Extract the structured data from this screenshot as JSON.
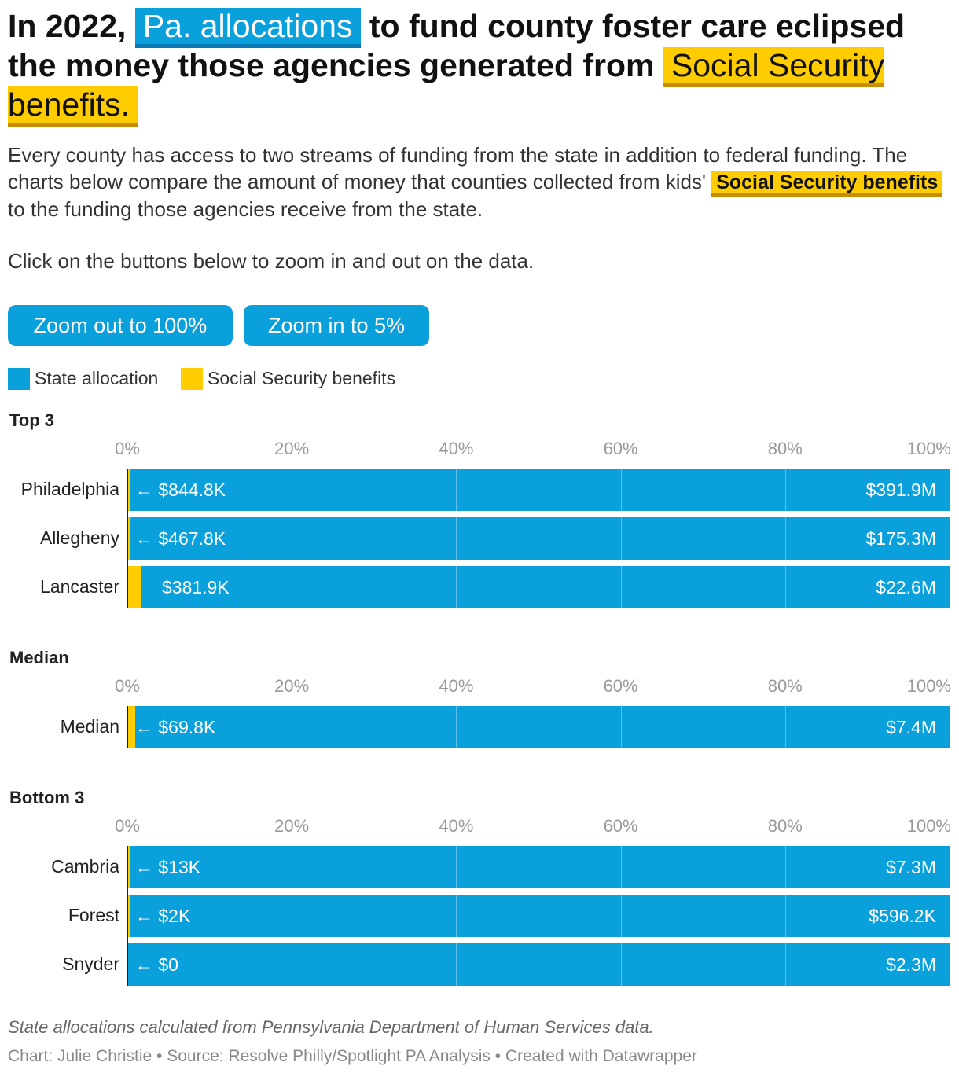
{
  "headline": {
    "part1": "In 2022, ",
    "highlight1": "Pa. allocations",
    "part2": " to fund county foster care eclipsed the money those agencies generated from ",
    "highlight2": "Social Security benefits."
  },
  "intro": {
    "part1": "Every county has access to two streams of funding from the state in addition to federal funding. The charts below compare the amount of money that counties collected from kids' ",
    "highlight": "Social Security benefits",
    "part2": " to the funding those agencies receive from the state."
  },
  "instructions": "Click on the buttons below to zoom in and out on the data.",
  "buttons": {
    "zoom_out": "Zoom out to 100%",
    "zoom_in": "Zoom in to 5%"
  },
  "legend": {
    "state": "State allocation",
    "ss": "Social Security benefits"
  },
  "colors": {
    "state": "#0aa0dc",
    "ss": "#ffcc00"
  },
  "chart_data": [
    {
      "type": "bar",
      "title": "Top 3",
      "xlim": [
        0,
        100
      ],
      "ticks": [
        "0%",
        "20%",
        "40%",
        "60%",
        "80%",
        "100%"
      ],
      "categories": [
        "Philadelphia",
        "Allegheny",
        "Lancaster"
      ],
      "series": [
        {
          "name": "Social Security benefits",
          "values": [
            0.22,
            0.27,
            1.69
          ],
          "labels": [
            "← $844.8K",
            "← $467.8K",
            "$381.9K"
          ]
        },
        {
          "name": "State allocation",
          "values": [
            100,
            100,
            100
          ],
          "labels": [
            "$391.9M",
            "$175.3M",
            "$22.6M"
          ]
        }
      ]
    },
    {
      "type": "bar",
      "title": "Median",
      "xlim": [
        0,
        100
      ],
      "ticks": [
        "0%",
        "20%",
        "40%",
        "60%",
        "80%",
        "100%"
      ],
      "categories": [
        "Median"
      ],
      "series": [
        {
          "name": "Social Security benefits",
          "values": [
            0.94
          ],
          "labels": [
            "← $69.8K"
          ]
        },
        {
          "name": "State allocation",
          "values": [
            100
          ],
          "labels": [
            "$7.4M"
          ]
        }
      ]
    },
    {
      "type": "bar",
      "title": "Bottom 3",
      "xlim": [
        0,
        100
      ],
      "ticks": [
        "0%",
        "20%",
        "40%",
        "60%",
        "80%",
        "100%"
      ],
      "categories": [
        "Cambria",
        "Forest",
        "Snyder"
      ],
      "series": [
        {
          "name": "Social Security benefits",
          "values": [
            0.18,
            0.34,
            0
          ],
          "labels": [
            "← $13K",
            "← $2K",
            "← $0"
          ]
        },
        {
          "name": "State allocation",
          "values": [
            100,
            100,
            100
          ],
          "labels": [
            "$7.3M",
            "$596.2K",
            "$2.3M"
          ]
        }
      ]
    }
  ],
  "footer": {
    "note": "State allocations calculated from Pennsylvania Department of Human Services data.",
    "credit": "Chart: Julie Christie • Source: Resolve Philly/Spotlight PA Analysis • Created with Datawrapper"
  }
}
